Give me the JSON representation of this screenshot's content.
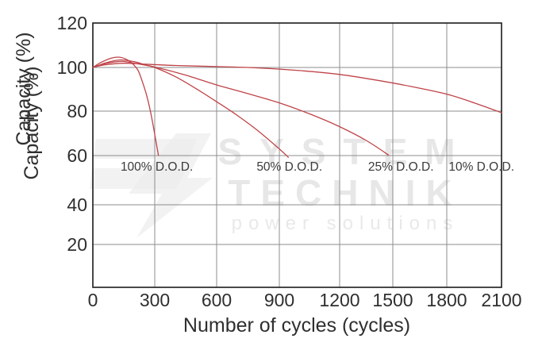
{
  "chart_data": {
    "type": "line",
    "title": "",
    "xlabel": "Number of cycles (cycles)",
    "ylabel": "Capacity (%)",
    "xlim": [
      0,
      2100
    ],
    "ylim": [
      0,
      120
    ],
    "x_ticks": [
      0,
      300,
      600,
      900,
      1200,
      1500,
      1800,
      2100
    ],
    "y_ticks": [
      20,
      40,
      60,
      80,
      100,
      120
    ],
    "grid": true,
    "line_color": "#bf4348",
    "series": [
      {
        "name": "100% D.O.D.",
        "points": [
          [
            0,
            100
          ],
          [
            40,
            102.3
          ],
          [
            90,
            104.2
          ],
          [
            130,
            104.6
          ],
          [
            170,
            103.3
          ],
          [
            200,
            101
          ],
          [
            220,
            98.5
          ],
          [
            240,
            93.5
          ],
          [
            260,
            87.5
          ],
          [
            280,
            79.5
          ],
          [
            300,
            69.5
          ],
          [
            318,
            60
          ]
        ]
      },
      {
        "name": "50% D.O.D.",
        "points": [
          [
            0,
            100
          ],
          [
            60,
            102
          ],
          [
            130,
            103.4
          ],
          [
            200,
            102.6
          ],
          [
            260,
            101
          ],
          [
            300,
            100
          ],
          [
            400,
            95.8
          ],
          [
            500,
            90.3
          ],
          [
            600,
            84.3
          ],
          [
            700,
            78
          ],
          [
            800,
            71
          ],
          [
            900,
            63
          ],
          [
            945,
            59.3
          ]
        ]
      },
      {
        "name": "25% D.O.D.",
        "points": [
          [
            0,
            100
          ],
          [
            60,
            101.7
          ],
          [
            140,
            102.7
          ],
          [
            220,
            101.6
          ],
          [
            300,
            100.2
          ],
          [
            450,
            96.5
          ],
          [
            600,
            92
          ],
          [
            750,
            88
          ],
          [
            900,
            83.8
          ],
          [
            1050,
            78.8
          ],
          [
            1200,
            73
          ],
          [
            1350,
            66.8
          ],
          [
            1475,
            60.3
          ]
        ]
      },
      {
        "name": "10% D.O.D.",
        "points": [
          [
            0,
            100
          ],
          [
            60,
            101.2
          ],
          [
            150,
            101.9
          ],
          [
            250,
            101.5
          ],
          [
            400,
            100.9
          ],
          [
            600,
            100.4
          ],
          [
            800,
            99.8
          ],
          [
            1000,
            98.6
          ],
          [
            1200,
            96.8
          ],
          [
            1400,
            94.3
          ],
          [
            1600,
            91.3
          ],
          [
            1800,
            87.8
          ],
          [
            1950,
            83.8
          ],
          [
            2100,
            79.3
          ]
        ]
      }
    ],
    "annotations": [
      {
        "text": "100% D.O.D.",
        "x": 310,
        "y": 55.5
      },
      {
        "text": "50% D.O.D.",
        "x": 950,
        "y": 55.5
      },
      {
        "text": "25% D.O.D.",
        "x": 1545,
        "y": 55.5
      },
      {
        "text": "10% D.O.D.",
        "x": 1990,
        "y": 55.5
      }
    ]
  },
  "watermark": {
    "line1": "SYSTEM",
    "line2": "TECHNIK",
    "line3": "power solutions"
  },
  "colors": {
    "curve": "#bf4348",
    "grid": "#8c8c8c",
    "frame": "#1a1a1a",
    "text": "#383838",
    "watermark": "#e7e7e7",
    "background": "#ffffff"
  }
}
